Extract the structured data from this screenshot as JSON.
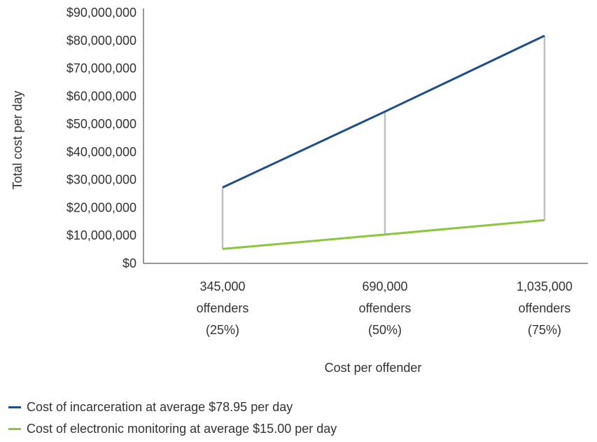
{
  "chart_data": {
    "type": "line",
    "title": "",
    "xlabel": "Cost per offender",
    "ylabel": "Total cost per day",
    "ylim": [
      0,
      90000000
    ],
    "yticks": [
      "$0",
      "$10,000,000",
      "$20,000,000",
      "$30,000,000",
      "$40,000,000",
      "$50,000,000",
      "$60,000,000",
      "$70,000,000",
      "$80,000,000",
      "$90,000,000"
    ],
    "categories": [
      [
        "345,000",
        "offenders",
        "(25%)"
      ],
      [
        "690,000",
        "offenders",
        "(50%)"
      ],
      [
        "1,035,000",
        "offenders",
        "(75%)"
      ]
    ],
    "series": [
      {
        "name": "Cost of incarceration at average $78.95 per day",
        "color": "#1f4e8c",
        "values": [
          27237750,
          54475500,
          81713250
        ]
      },
      {
        "name": "Cost of electronic monitoring at average $15.00 per day",
        "color": "#8cc63f",
        "values": [
          5175000,
          10350000,
          15525000
        ]
      }
    ],
    "drop_lines": true,
    "drop_line_color": "#c0c0c0",
    "legend_position": "bottom-left",
    "grid": false
  }
}
